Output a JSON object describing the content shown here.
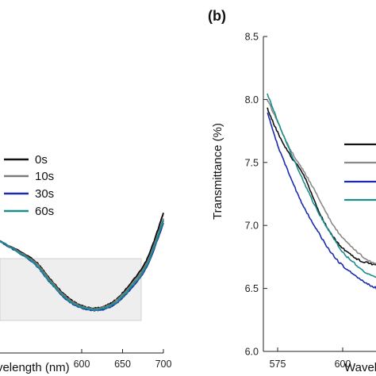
{
  "chart_data": [
    {
      "panel": "a",
      "type": "line",
      "title": "",
      "xlabel": "Wavelength (nm)",
      "ylabel": "",
      "xlim_visible": [
        500,
        700
      ],
      "xticks": [
        600,
        650,
        700
      ],
      "xtick_labels": [
        "600",
        "650",
        "700"
      ],
      "highlight_region": [
        500,
        682
      ],
      "legend_position": "center",
      "series": [
        {
          "name": "0s",
          "color": "#111111",
          "x": [
            500,
            540,
            560,
            580,
            600,
            620,
            640,
            660,
            680,
            700
          ],
          "y": [
            0.355,
            0.52,
            0.69,
            0.85,
            0.945,
            0.965,
            0.9,
            0.74,
            0.52,
            0.1
          ]
        },
        {
          "name": "10s",
          "color": "#7a7a7a",
          "x": [
            500,
            540,
            560,
            580,
            600,
            620,
            640,
            660,
            680,
            700
          ],
          "y": [
            0.355,
            0.53,
            0.7,
            0.86,
            0.95,
            0.97,
            0.91,
            0.76,
            0.55,
            0.15
          ]
        },
        {
          "name": "30s",
          "color": "#1a2bb0",
          "x": [
            500,
            540,
            560,
            580,
            600,
            620,
            640,
            660,
            680,
            700
          ],
          "y": [
            0.355,
            0.55,
            0.72,
            0.88,
            0.965,
            0.985,
            0.935,
            0.79,
            0.58,
            0.19
          ]
        },
        {
          "name": "60s",
          "color": "#1c8c8c",
          "x": [
            500,
            540,
            560,
            580,
            600,
            620,
            640,
            660,
            680,
            700
          ],
          "y": [
            0.355,
            0.545,
            0.715,
            0.875,
            0.96,
            0.98,
            0.925,
            0.78,
            0.57,
            0.17
          ]
        }
      ]
    },
    {
      "panel": "b",
      "panel_label": "(b)",
      "type": "line",
      "title": "",
      "xlabel": "Wavelength (nm)",
      "ylabel": "Transmittance (%)",
      "xlim_visible": [
        570,
        625
      ],
      "ylim": [
        6.0,
        8.5
      ],
      "xticks": [
        575,
        600
      ],
      "xtick_labels": [
        "575",
        "600"
      ],
      "yticks": [
        6.0,
        6.5,
        7.0,
        7.5,
        8.0,
        8.5
      ],
      "ytick_labels": [
        "6.0",
        "6.5",
        "7.0",
        "7.5",
        "8.0",
        "8.5"
      ],
      "series": [
        {
          "color": "#111111",
          "x": [
            571,
            575,
            580,
            585,
            590,
            595,
            600,
            605,
            610,
            615,
            620
          ],
          "y": [
            7.93,
            7.74,
            7.55,
            7.4,
            7.15,
            6.95,
            6.82,
            6.74,
            6.7,
            6.68,
            6.66
          ]
        },
        {
          "color": "#8a8a8a",
          "x": [
            571,
            575,
            580,
            585,
            590,
            595,
            600,
            605,
            610,
            615,
            620
          ],
          "y": [
            8.0,
            7.82,
            7.6,
            7.43,
            7.25,
            7.05,
            6.9,
            6.8,
            6.72,
            6.68,
            6.65
          ]
        },
        {
          "color": "#1a2bb0",
          "x": [
            571,
            575,
            580,
            585,
            590,
            595,
            600,
            605,
            610,
            615,
            620
          ],
          "y": [
            7.9,
            7.64,
            7.38,
            7.15,
            6.97,
            6.8,
            6.68,
            6.6,
            6.53,
            6.49,
            6.47
          ]
        },
        {
          "color": "#1c8c8c",
          "x": [
            571,
            575,
            580,
            585,
            590,
            595,
            600,
            605,
            610,
            615,
            620
          ],
          "y": [
            8.05,
            7.83,
            7.58,
            7.35,
            7.13,
            6.95,
            6.79,
            6.69,
            6.61,
            6.57,
            6.55
          ]
        }
      ]
    }
  ]
}
